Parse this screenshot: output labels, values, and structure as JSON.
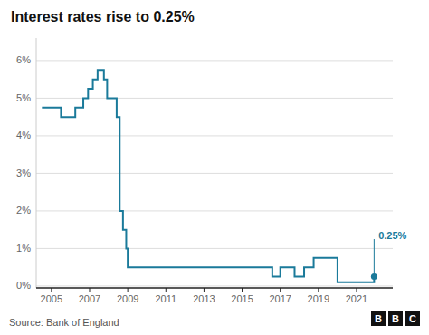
{
  "chart_data": {
    "type": "line",
    "title": "Interest rates rise to 0.25%",
    "source": "Source: Bank of England",
    "logo": [
      "B",
      "B",
      "C"
    ],
    "color": "#1a7a9a",
    "grid": true,
    "x": [
      2004.5,
      2005.5,
      2005.5,
      2006.25,
      2006.25,
      2006.67,
      2006.67,
      2006.92,
      2006.92,
      2007.17,
      2007.17,
      2007.42,
      2007.42,
      2007.75,
      2007.75,
      2007.92,
      2007.92,
      2008.42,
      2008.42,
      2008.58,
      2008.58,
      2008.75,
      2008.75,
      2008.92,
      2008.92,
      2009.0,
      2009.0,
      2016.58,
      2016.58,
      2017.0,
      2017.0,
      2017.75,
      2017.75,
      2018.25,
      2018.25,
      2018.75,
      2018.75,
      2020.0,
      2020.0,
      2020.25,
      2021.75,
      2021.75,
      2021.92,
      2021.92
    ],
    "values": [
      4.75,
      4.75,
      4.5,
      4.5,
      4.75,
      4.75,
      5.0,
      5.0,
      5.25,
      5.25,
      5.5,
      5.5,
      5.75,
      5.75,
      5.5,
      5.5,
      5.0,
      5.0,
      4.5,
      4.5,
      2.0,
      2.0,
      1.5,
      1.5,
      1.0,
      1.0,
      0.5,
      0.5,
      0.25,
      0.25,
      0.5,
      0.5,
      0.25,
      0.25,
      0.5,
      0.5,
      0.75,
      0.75,
      0.1,
      0.1,
      0.1,
      0.1,
      0.1,
      0.25
    ],
    "dot": {
      "x": 2021.92,
      "y": 0.25
    },
    "vline": {
      "x": 2021.92,
      "y0": 0.32,
      "y1": 1.25
    },
    "annotations": [
      {
        "text": "0.25%",
        "x": 2022.15,
        "y": 1.35
      }
    ],
    "xlim": [
      2004.2,
      2022.9
    ],
    "ylim": [
      -0.05,
      6.6
    ],
    "xticks": [
      2005,
      2007,
      2009,
      2011,
      2013,
      2015,
      2017,
      2019,
      2021
    ],
    "yticks": [
      {
        "value": 0,
        "label": "0%"
      },
      {
        "value": 1,
        "label": "1%"
      },
      {
        "value": 2,
        "label": "2%"
      },
      {
        "value": 3,
        "label": "3%"
      },
      {
        "value": 4,
        "label": "4%"
      },
      {
        "value": 5,
        "label": "5%"
      },
      {
        "value": 6,
        "label": "6%"
      }
    ]
  }
}
